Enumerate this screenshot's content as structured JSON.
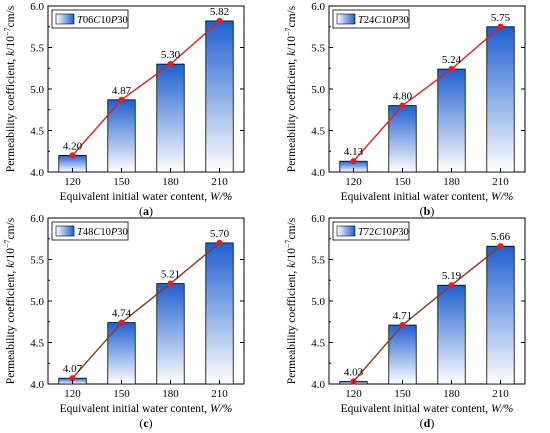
{
  "figure": {
    "y_axis_label_prefix": "Permeability coefficient, ",
    "y_axis_label_symbol": "k",
    "y_axis_label_unit_base": "/10",
    "y_axis_label_unit_exp": "−7",
    "y_axis_label_unit_tail": "cm/s",
    "x_axis_label_prefix": "Equivalent initial water content, ",
    "x_axis_label_symbol": "W",
    "x_axis_label_unit": "/%",
    "colors": {
      "bar_top": "#1f5fd1",
      "bar_bottom": "#ffffff",
      "bar_edge": "#000000",
      "marker": "#e02020"
    }
  },
  "chart_data": [
    {
      "type": "bar",
      "panel": "(a)",
      "legend": [
        "T",
        "06",
        "C",
        "10",
        "P",
        "30"
      ],
      "line_color": "#e02020",
      "categories": [
        "120",
        "150",
        "180",
        "210"
      ],
      "values": [
        4.2,
        4.87,
        5.3,
        5.82
      ],
      "labels": [
        "4.20",
        "4.87",
        "5.30",
        "5.82"
      ],
      "ylim": [
        4.0,
        6.0
      ],
      "yticks": [
        "4.0",
        "4.5",
        "5.0",
        "5.5",
        "6.0"
      ]
    },
    {
      "type": "bar",
      "panel": "(b)",
      "legend": [
        "T",
        "24",
        "C",
        "10",
        "P",
        "30"
      ],
      "line_color": "#e02020",
      "categories": [
        "120",
        "150",
        "180",
        "210"
      ],
      "values": [
        4.13,
        4.8,
        5.24,
        5.75
      ],
      "labels": [
        "4.13",
        "4.80",
        "5.24",
        "5.75"
      ],
      "ylim": [
        4.0,
        6.0
      ],
      "yticks": [
        "4.0",
        "4.5",
        "5.0",
        "5.5",
        "6.0"
      ]
    },
    {
      "type": "bar",
      "panel": "(c)",
      "legend": [
        "T",
        "48",
        "C",
        "10",
        "P",
        "30"
      ],
      "line_color": "#8b3a1a",
      "categories": [
        "120",
        "150",
        "180",
        "210"
      ],
      "values": [
        4.07,
        4.74,
        5.21,
        5.7
      ],
      "labels": [
        "4.07",
        "4.74",
        "5.21",
        "5.70"
      ],
      "ylim": [
        4.0,
        6.0
      ],
      "yticks": [
        "4.0",
        "4.5",
        "5.0",
        "5.5",
        "6.0"
      ]
    },
    {
      "type": "bar",
      "panel": "(d)",
      "legend": [
        "T",
        "72",
        "C",
        "10",
        "P",
        "30"
      ],
      "line_color": "#8b3a1a",
      "categories": [
        "120",
        "150",
        "180",
        "210"
      ],
      "values": [
        4.03,
        4.71,
        5.19,
        5.66
      ],
      "labels": [
        "4.03",
        "4.71",
        "5.19",
        "5.66"
      ],
      "ylim": [
        4.0,
        6.0
      ],
      "yticks": [
        "4.0",
        "4.5",
        "5.0",
        "5.5",
        "6.0"
      ]
    }
  ]
}
